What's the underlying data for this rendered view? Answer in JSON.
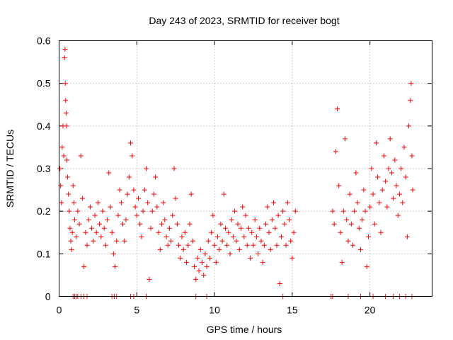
{
  "chart_data": {
    "type": "scatter",
    "title": "Day 243 of 2023, SRMTID for receiver bogt",
    "xlabel": "GPS time / hours",
    "ylabel": "SRMTID / TECUs",
    "xlim": [
      0,
      24
    ],
    "ylim": [
      0,
      0.6
    ],
    "x_ticks": [
      0,
      5,
      10,
      15,
      20
    ],
    "x_tick_labels": [
      "0",
      "5",
      "10",
      "15",
      "20"
    ],
    "y_ticks": [
      0,
      0.1,
      0.2,
      0.3,
      0.4,
      0.5,
      0.6
    ],
    "y_tick_labels": [
      "0",
      "0.1",
      "0.2",
      "0.3",
      "0.4",
      "0.5",
      "0.6"
    ],
    "grid": true,
    "marker": "+",
    "series_color": "#ff0000",
    "series": [
      {
        "name": "SRMTID",
        "points": [
          [
            0.05,
            0.3
          ],
          [
            0.1,
            0.26
          ],
          [
            0.15,
            0.22
          ],
          [
            0.2,
            0.35
          ],
          [
            0.25,
            0.4
          ],
          [
            0.3,
            0.33
          ],
          [
            0.35,
            0.56
          ],
          [
            0.38,
            0.58
          ],
          [
            0.4,
            0.5
          ],
          [
            0.42,
            0.46
          ],
          [
            0.45,
            0.43
          ],
          [
            0.48,
            0.4
          ],
          [
            0.5,
            0.32
          ],
          [
            0.55,
            0.28
          ],
          [
            0.6,
            0.24
          ],
          [
            0.65,
            0.2
          ],
          [
            0.7,
            0.16
          ],
          [
            0.75,
            0.13
          ],
          [
            0.8,
            0.11
          ],
          [
            0.85,
            0.15
          ],
          [
            0.9,
            0.26
          ],
          [
            0.95,
            0.22
          ],
          [
            1.0,
            0.18
          ],
          [
            1.1,
            0.14
          ],
          [
            1.2,
            0.2
          ],
          [
            1.3,
            0.17
          ],
          [
            1.4,
            0.33
          ],
          [
            1.5,
            0.23
          ],
          [
            1.6,
            0.07
          ],
          [
            1.7,
            0.15
          ],
          [
            1.8,
            0.12
          ],
          [
            1.9,
            0.18
          ],
          [
            2.0,
            0.21
          ],
          [
            2.1,
            0.16
          ],
          [
            2.2,
            0.13
          ],
          [
            2.3,
            0.19
          ],
          [
            2.4,
            0.15
          ],
          [
            2.5,
            0.22
          ],
          [
            2.6,
            0.17
          ],
          [
            2.7,
            0.14
          ],
          [
            2.8,
            0.2
          ],
          [
            2.9,
            0.16
          ],
          [
            3.0,
            0.12
          ],
          [
            3.1,
            0.18
          ],
          [
            3.2,
            0.29
          ],
          [
            3.3,
            0.21
          ],
          [
            3.4,
            0.15
          ],
          [
            3.5,
            0.1
          ],
          [
            3.6,
            0.07
          ],
          [
            3.7,
            0.13
          ],
          [
            3.8,
            0.19
          ],
          [
            3.9,
            0.25
          ],
          [
            4.0,
            0.22
          ],
          [
            4.1,
            0.17
          ],
          [
            4.2,
            0.13
          ],
          [
            4.3,
            0.18
          ],
          [
            4.4,
            0.24
          ],
          [
            4.5,
            0.28
          ],
          [
            4.6,
            0.36
          ],
          [
            4.7,
            0.33
          ],
          [
            4.8,
            0.25
          ],
          [
            4.9,
            0.21
          ],
          [
            5.0,
            0.19
          ],
          [
            5.1,
            0.23
          ],
          [
            5.2,
            0.17
          ],
          [
            5.3,
            0.14
          ],
          [
            5.4,
            0.2
          ],
          [
            5.5,
            0.25
          ],
          [
            5.6,
            0.3
          ],
          [
            5.7,
            0.22
          ],
          [
            5.8,
            0.04
          ],
          [
            5.9,
            0.16
          ],
          [
            6.0,
            0.2
          ],
          [
            6.1,
            0.24
          ],
          [
            6.2,
            0.28
          ],
          [
            6.3,
            0.21
          ],
          [
            6.4,
            0.15
          ],
          [
            6.5,
            0.11
          ],
          [
            6.6,
            0.17
          ],
          [
            6.7,
            0.22
          ],
          [
            6.8,
            0.18
          ],
          [
            6.9,
            0.14
          ],
          [
            7.0,
            0.12
          ],
          [
            7.1,
            0.16
          ],
          [
            7.2,
            0.13
          ],
          [
            7.3,
            0.19
          ],
          [
            7.4,
            0.3
          ],
          [
            7.5,
            0.23
          ],
          [
            7.6,
            0.17
          ],
          [
            7.7,
            0.12
          ],
          [
            7.8,
            0.09
          ],
          [
            7.9,
            0.14
          ],
          [
            8.0,
            0.11
          ],
          [
            8.1,
            0.15
          ],
          [
            8.2,
            0.08
          ],
          [
            8.3,
            0.12
          ],
          [
            8.4,
            0.17
          ],
          [
            8.5,
            0.24
          ],
          [
            8.6,
            0.13
          ],
          [
            8.7,
            0.07
          ],
          [
            8.8,
            0.04
          ],
          [
            8.9,
            0.09
          ],
          [
            9.0,
            0.06
          ],
          [
            9.1,
            0.11
          ],
          [
            9.2,
            0.08
          ],
          [
            9.3,
            0.05
          ],
          [
            9.4,
            0.1
          ],
          [
            9.5,
            0.07
          ],
          [
            9.6,
            0.13
          ],
          [
            9.7,
            0.09
          ],
          [
            9.8,
            0.15
          ],
          [
            9.9,
            0.19
          ],
          [
            10.0,
            0.12
          ],
          [
            10.1,
            0.08
          ],
          [
            10.2,
            0.14
          ],
          [
            10.3,
            0.11
          ],
          [
            10.4,
            0.17
          ],
          [
            10.5,
            0.13
          ],
          [
            10.6,
            0.24
          ],
          [
            10.7,
            0.16
          ],
          [
            10.8,
            0.12
          ],
          [
            10.9,
            0.15
          ],
          [
            11.0,
            0.1
          ],
          [
            11.1,
            0.18
          ],
          [
            11.2,
            0.14
          ],
          [
            11.3,
            0.2
          ],
          [
            11.4,
            0.13
          ],
          [
            11.5,
            0.17
          ],
          [
            11.6,
            0.11
          ],
          [
            11.7,
            0.16
          ],
          [
            11.8,
            0.21
          ],
          [
            11.9,
            0.14
          ],
          [
            12.0,
            0.19
          ],
          [
            12.1,
            0.12
          ],
          [
            12.2,
            0.16
          ],
          [
            12.3,
            0.09
          ],
          [
            12.4,
            0.15
          ],
          [
            12.5,
            0.12
          ],
          [
            12.6,
            0.18
          ],
          [
            12.7,
            0.14
          ],
          [
            12.8,
            0.1
          ],
          [
            12.9,
            0.16
          ],
          [
            13.0,
            0.13
          ],
          [
            13.1,
            0.08
          ],
          [
            13.2,
            0.12
          ],
          [
            13.3,
            0.17
          ],
          [
            13.4,
            0.21
          ],
          [
            13.5,
            0.15
          ],
          [
            13.6,
            0.11
          ],
          [
            13.7,
            0.18
          ],
          [
            13.8,
            0.22
          ],
          [
            13.9,
            0.16
          ],
          [
            14.0,
            0.12
          ],
          [
            14.1,
            0.19
          ],
          [
            14.2,
            0.03
          ],
          [
            14.3,
            0.14
          ],
          [
            14.4,
            0.2
          ],
          [
            14.5,
            0.17
          ],
          [
            14.6,
            0.12
          ],
          [
            14.7,
            0.22
          ],
          [
            14.8,
            0.18
          ],
          [
            14.9,
            0.13
          ],
          [
            15.0,
            0.09
          ],
          [
            15.1,
            0.15
          ],
          [
            15.2,
            0.2
          ],
          [
            17.6,
            0.2
          ],
          [
            17.7,
            0.17
          ],
          [
            17.8,
            0.34
          ],
          [
            17.9,
            0.44
          ],
          [
            18.0,
            0.26
          ],
          [
            18.1,
            0.15
          ],
          [
            18.2,
            0.08
          ],
          [
            18.3,
            0.2
          ],
          [
            18.4,
            0.37
          ],
          [
            18.5,
            0.18
          ],
          [
            18.6,
            0.13
          ],
          [
            18.7,
            0.24
          ],
          [
            18.8,
            0.17
          ],
          [
            18.9,
            0.12
          ],
          [
            19.0,
            0.2
          ],
          [
            19.1,
            0.29
          ],
          [
            19.2,
            0.22
          ],
          [
            19.3,
            0.16
          ],
          [
            19.4,
            0.11
          ],
          [
            19.5,
            0.18
          ],
          [
            19.6,
            0.25
          ],
          [
            19.7,
            0.2
          ],
          [
            19.8,
            0.07
          ],
          [
            19.9,
            0.14
          ],
          [
            20.0,
            0.21
          ],
          [
            20.1,
            0.3
          ],
          [
            20.2,
            0.24
          ],
          [
            20.3,
            0.17
          ],
          [
            20.4,
            0.36
          ],
          [
            20.5,
            0.28
          ],
          [
            20.6,
            0.22
          ],
          [
            20.7,
            0.15
          ],
          [
            20.8,
            0.25
          ],
          [
            20.9,
            0.33
          ],
          [
            21.0,
            0.27
          ],
          [
            21.1,
            0.21
          ],
          [
            21.2,
            0.3
          ],
          [
            21.3,
            0.37
          ],
          [
            21.4,
            0.29
          ],
          [
            21.5,
            0.23
          ],
          [
            21.6,
            0.32
          ],
          [
            21.7,
            0.26
          ],
          [
            21.8,
            0.19
          ],
          [
            21.9,
            0.24
          ],
          [
            22.0,
            0.3
          ],
          [
            22.1,
            0.22
          ],
          [
            22.2,
            0.35
          ],
          [
            22.3,
            0.28
          ],
          [
            22.4,
            0.14
          ],
          [
            22.5,
            0.4
          ],
          [
            22.6,
            0.46
          ],
          [
            22.65,
            0.5
          ],
          [
            22.7,
            0.33
          ],
          [
            22.75,
            0.25
          ],
          [
            0.9,
            0.0
          ],
          [
            1.0,
            0.0
          ],
          [
            1.1,
            0.0
          ],
          [
            1.2,
            0.0
          ],
          [
            1.4,
            0.0
          ],
          [
            1.6,
            0.0
          ],
          [
            1.8,
            0.0
          ],
          [
            3.4,
            0.0
          ],
          [
            3.55,
            0.0
          ],
          [
            3.7,
            0.0
          ],
          [
            4.6,
            0.0
          ],
          [
            4.8,
            0.0
          ],
          [
            5.6,
            0.0
          ],
          [
            8.8,
            0.0
          ],
          [
            9.5,
            0.0
          ],
          [
            14.4,
            0.0
          ],
          [
            17.5,
            0.0
          ],
          [
            17.6,
            0.0
          ],
          [
            18.6,
            0.0
          ],
          [
            19.4,
            0.0
          ],
          [
            20.2,
            0.0
          ],
          [
            21.0,
            0.0
          ],
          [
            21.5,
            0.0
          ],
          [
            21.9,
            0.0
          ],
          [
            22.3,
            0.0
          ],
          [
            22.7,
            0.0
          ]
        ]
      }
    ]
  }
}
